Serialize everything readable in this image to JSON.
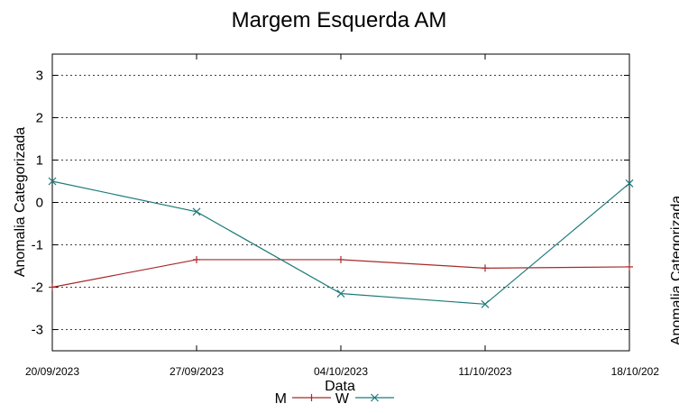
{
  "chart_data": {
    "type": "line",
    "title": "Margem Esquerda AM",
    "xlabel": "Data",
    "ylabel": "Anomalia Categorizada",
    "right_ylabel": "Anomalia Categorizada",
    "categories": [
      "20/09/2023",
      "27/09/2023",
      "04/10/2023",
      "11/10/2023",
      "18/10/202"
    ],
    "ylim": [
      -3.5,
      3.5
    ],
    "yticks": [
      "3",
      "2",
      "1",
      "0",
      "-1",
      "-2",
      "-3"
    ],
    "ytick_values": [
      3,
      2,
      1,
      0,
      -1,
      -2,
      -3
    ],
    "grid": true,
    "legend_position": "bottom-center",
    "series": [
      {
        "name": "M",
        "values": [
          -2.0,
          -1.35,
          -1.35,
          -1.55,
          -1.52
        ],
        "color": "#a52a2a",
        "marker": "plus"
      },
      {
        "name": "W",
        "values": [
          0.5,
          -0.22,
          -2.15,
          -2.4,
          0.45
        ],
        "color": "#1f7a7a",
        "marker": "cross"
      }
    ]
  }
}
